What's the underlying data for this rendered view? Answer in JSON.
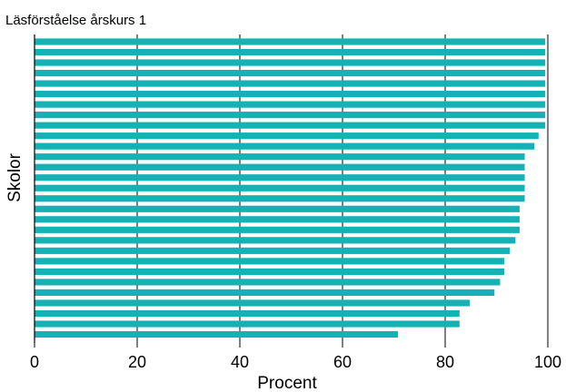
{
  "chart_data": {
    "type": "bar",
    "orientation": "horizontal",
    "title": "Läsförståelse årskurs 1",
    "xlabel": "Procent",
    "ylabel": "Skolor",
    "xlim": [
      0,
      100
    ],
    "xticks": [
      "0",
      "20",
      "40",
      "60",
      "80",
      "100"
    ],
    "grid": "vertical",
    "bar_color": "#16b1b5",
    "values": [
      99.5,
      99.5,
      99.5,
      99.5,
      99.5,
      99.5,
      99.5,
      99.5,
      99.5,
      98.2,
      97.4,
      95.5,
      95.5,
      95.5,
      95.5,
      95.5,
      94.5,
      94.5,
      94.5,
      93.7,
      92.6,
      91.5,
      91.5,
      90.7,
      89.6,
      84.8,
      82.8,
      82.8,
      70.8
    ]
  }
}
